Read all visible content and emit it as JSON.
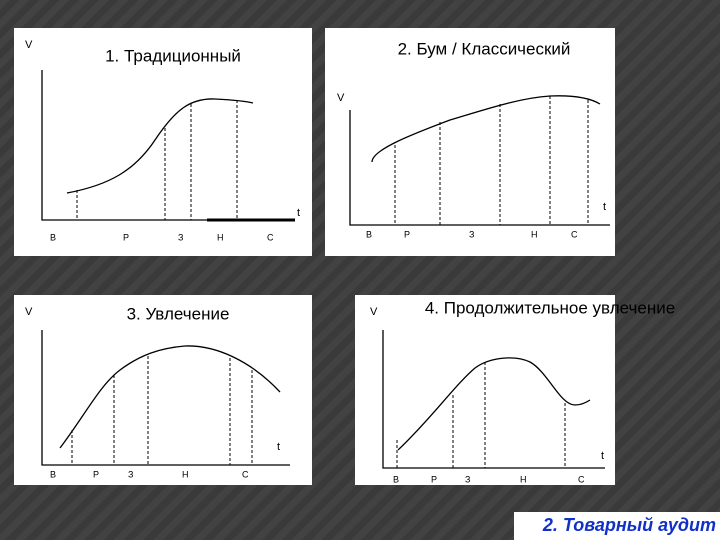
{
  "panels": [
    {
      "title": "1. Традиционный",
      "y_label": "V",
      "x_label": "t",
      "stages": [
        "В",
        "Р",
        "З",
        "Н",
        "С"
      ]
    },
    {
      "title": "2. Бум / Классический",
      "y_label": "V",
      "x_label": "t",
      "stages": [
        "В",
        "Р",
        "З",
        "Н",
        "С"
      ]
    },
    {
      "title": "3. Увлечение",
      "y_label": "V",
      "x_label": "t",
      "stages": [
        "В",
        "Р",
        "З",
        "Н",
        "С"
      ]
    },
    {
      "title": "4. Продолжительное увлечение",
      "y_label": "V",
      "x_label": "t",
      "stages": [
        "В",
        "Р",
        "З",
        "Н",
        "С"
      ]
    }
  ],
  "footer": "2. Товарный аудит"
}
